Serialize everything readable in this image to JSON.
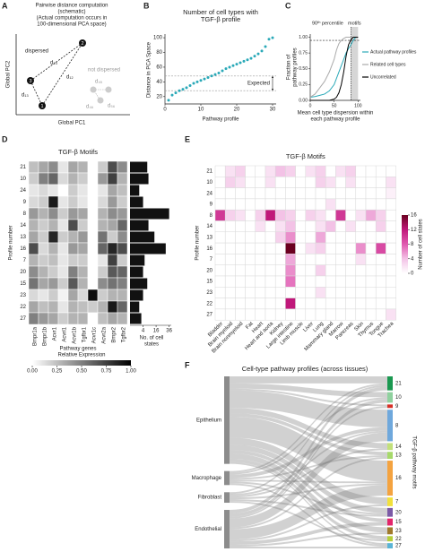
{
  "panel_labels": [
    "A",
    "B",
    "C",
    "D",
    "E",
    "F"
  ],
  "schematic": {
    "title_lines": [
      "Pairwise distance computation",
      "(schematic)",
      "(Actual computation occurs in",
      "100-dimensional PCA space)"
    ],
    "x_label": "Global PC1",
    "y_label": "Global PC2",
    "groups": [
      "dispersed",
      "not dispersed"
    ],
    "nodes": [
      "1",
      "2",
      "3"
    ],
    "edges": [
      "d₁₂",
      "d₁₃",
      "d₂₃",
      "d₄₅",
      "d₄₆",
      "d₅₆"
    ]
  },
  "chart_data": [
    {
      "type": "scatter",
      "title_lines": [
        "Number of cell types with",
        "TGF-β profile"
      ],
      "x_label": "Pathway profile",
      "y_label": "Distance in PCA Space",
      "color": "#2aa9b8",
      "x": [
        1,
        2,
        3,
        4,
        5,
        6,
        7,
        8,
        9,
        10,
        11,
        12,
        13,
        14,
        15,
        16,
        17,
        18,
        19,
        20,
        21,
        22,
        23,
        24,
        25,
        26,
        27,
        28,
        29,
        30
      ],
      "values": [
        15,
        22,
        25,
        28,
        30,
        32,
        35,
        38,
        40,
        42,
        44,
        46,
        48,
        50,
        52,
        55,
        58,
        60,
        62,
        64,
        66,
        68,
        70,
        72,
        75,
        78,
        82,
        88,
        98,
        100
      ],
      "xlim": [
        0,
        31
      ],
      "ylim": [
        10,
        105
      ],
      "xticks": [
        0,
        10,
        20,
        30
      ],
      "yticks": [
        20,
        40,
        60,
        80,
        100
      ],
      "expected_range": [
        28,
        48
      ],
      "expected_label": "Expected"
    },
    {
      "type": "line",
      "x_label_lines": [
        "Mean cell type dispersion within",
        "each pathway profile"
      ],
      "y_label_lines": [
        "Fraction of",
        "pathway profiles"
      ],
      "x": [
        0,
        10,
        20,
        30,
        40,
        50,
        55,
        60,
        65,
        70,
        75,
        80,
        85,
        90,
        95,
        100
      ],
      "series": [
        {
          "name": "Actual pathway profiles",
          "color": "#2aa9b8",
          "values": [
            0.05,
            0.06,
            0.08,
            0.1,
            0.15,
            0.25,
            0.35,
            0.45,
            0.55,
            0.65,
            0.75,
            0.82,
            0.88,
            0.95,
            1,
            1
          ]
        },
        {
          "name": "Related cell types",
          "color": "#aaaaaa",
          "values": [
            0.05,
            0.1,
            0.2,
            0.3,
            0.45,
            0.65,
            0.8,
            0.9,
            0.95,
            0.98,
            1,
            1,
            1,
            1,
            1,
            1
          ]
        },
        {
          "name": "Uncorrelated",
          "color": "#000000",
          "values": [
            0,
            0,
            0,
            0,
            0,
            0.02,
            0.05,
            0.12,
            0.25,
            0.45,
            0.7,
            0.88,
            0.96,
            1,
            1,
            1
          ]
        }
      ],
      "xlim": [
        0,
        105
      ],
      "ylim": [
        0,
        1.05
      ],
      "xticks": [
        0,
        50,
        100
      ],
      "yticks": [
        {
          "value": 0,
          "label": "0.00"
        },
        0.25,
        {
          "value": 0.5,
          "label": "0.50"
        },
        0.75,
        {
          "value": 1,
          "label": "1.00"
        }
      ],
      "motif_region": [
        85,
        100
      ],
      "motif_label": "motifs",
      "percentile_x": 85,
      "percentile_y": 0.95,
      "percentile_label": "90ᵗʰ percentile"
    },
    {
      "type": "heatmap",
      "title": "TGF-β Motifs",
      "y_label": "Profile number",
      "x_label": "Pathway genes",
      "colormap": "Greys",
      "clim": [
        0,
        1
      ],
      "rows": [
        "21",
        "10",
        "24",
        "9",
        "8",
        "14",
        "13",
        "16",
        "7",
        "20",
        "15",
        "23",
        "22",
        "27"
      ],
      "columns": [
        "Bmpr1a",
        "Bmpr1b",
        "Acvr1",
        "Acvrl1",
        "Acvr1b",
        "Tgfbr1",
        "Acvr1c",
        "Acvr2a",
        "Bmpr2",
        "Tgfbr2"
      ],
      "matrix": [
        [
          0.25,
          0.35,
          0.45,
          0.1,
          0.35,
          0.3,
          0,
          0.2,
          0.7,
          0.45
        ],
        [
          0.2,
          0.5,
          0.6,
          0.15,
          0.3,
          0.2,
          0,
          0.4,
          0.75,
          0.3
        ],
        [
          0.1,
          0.15,
          0.1,
          0,
          0.2,
          0.1,
          0,
          0.1,
          0.35,
          0.25
        ],
        [
          0.15,
          0.2,
          0.9,
          0.1,
          0.2,
          0.1,
          0,
          0.15,
          0.4,
          0.2
        ],
        [
          0.4,
          0.3,
          0.45,
          0.2,
          0.4,
          0.35,
          0,
          0.3,
          0.45,
          0.4
        ],
        [
          0.3,
          0.2,
          0.3,
          0.1,
          0.7,
          0.2,
          0,
          0.3,
          0.35,
          0.6
        ],
        [
          0.35,
          0.2,
          0.85,
          0.2,
          0.3,
          0.4,
          0,
          0.55,
          0.2,
          0.45
        ],
        [
          0.7,
          0.15,
          0.3,
          0.1,
          0.4,
          0.35,
          0,
          0.6,
          0.85,
          0.7
        ],
        [
          0.3,
          0.2,
          0.25,
          0.1,
          0.2,
          0.2,
          0,
          0.1,
          0.75,
          0.2
        ],
        [
          0.45,
          0.3,
          0.2,
          0.1,
          0.5,
          0.3,
          0,
          0.2,
          0.65,
          0.6
        ],
        [
          0.55,
          0.35,
          0.4,
          0.2,
          0.65,
          0.3,
          0,
          0.45,
          0.55,
          0.5
        ],
        [
          0.15,
          0.1,
          0.2,
          0.05,
          0.35,
          0.15,
          0.95,
          0.2,
          0.3,
          0.3
        ],
        [
          0.35,
          0.25,
          0.3,
          0.1,
          0.3,
          0.25,
          0.2,
          0.3,
          0.9,
          0.6
        ],
        [
          0.5,
          0.4,
          0.35,
          0.2,
          0.3,
          0.3,
          0,
          0.25,
          0.35,
          0.3
        ]
      ],
      "bar_values": [
        7,
        8,
        2,
        4,
        36,
        8,
        14,
        30,
        5,
        4,
        7,
        4,
        2,
        3
      ],
      "bar_color": "#111111",
      "bar_lim": [
        0,
        40
      ],
      "bar_ticks": [
        4,
        16,
        36
      ],
      "bar_scale": "sqrt",
      "bar_label_lines": [
        "No. of cell",
        "states"
      ],
      "colorbar_label": "Relative Expression",
      "colorbar_ticks": [
        {
          "value": 0,
          "label": "0.00"
        },
        0.25,
        {
          "value": 0.5,
          "label": "0.50"
        },
        0.75,
        {
          "value": 1,
          "label": "1.00"
        }
      ]
    },
    {
      "type": "heatmap",
      "title": "TGF-β Motifs",
      "y_label": "Profile number",
      "colormap": "RdPu",
      "clim": [
        0,
        16
      ],
      "rows": [
        "21",
        "10",
        "24",
        "9",
        "8",
        "14",
        "13",
        "16",
        "7",
        "20",
        "15",
        "23",
        "22",
        "27"
      ],
      "columns": [
        "Bladder",
        "Brain myeloid",
        "Brain nonmyeloid",
        "Fat",
        "Heart",
        "Heart and aorta",
        "Kidney",
        "Large intestine",
        "Limb muscle",
        "Liver",
        "Lung",
        "Mammary gland",
        "Marrow",
        "Pancreas",
        "Skin",
        "Thymus",
        "Tongue",
        "Trachea"
      ],
      "matrix": [
        [
          0,
          2,
          3,
          0,
          0,
          2,
          4,
          3,
          0,
          2,
          3,
          0,
          2,
          3,
          0,
          0,
          0,
          0
        ],
        [
          0,
          3,
          2,
          0,
          0,
          2,
          0,
          0,
          0,
          0,
          3,
          2,
          0,
          2,
          0,
          0,
          0,
          2
        ],
        [
          0,
          0,
          0,
          0,
          0,
          0,
          0,
          0,
          0,
          0,
          0,
          0,
          0,
          0,
          0,
          0,
          0,
          1
        ],
        [
          0,
          0,
          0,
          0,
          0,
          0,
          0,
          0,
          0,
          0,
          0,
          2,
          0,
          0,
          0,
          0,
          0,
          0
        ],
        [
          10,
          3,
          2,
          0,
          3,
          12,
          4,
          3,
          0,
          3,
          2,
          0,
          10,
          0,
          2,
          5,
          3,
          0
        ],
        [
          0,
          0,
          0,
          0,
          2,
          0,
          2,
          4,
          0,
          0,
          2,
          4,
          0,
          2,
          0,
          0,
          3,
          0
        ],
        [
          0,
          0,
          0,
          0,
          0,
          0,
          3,
          6,
          0,
          0,
          5,
          0,
          0,
          0,
          0,
          0,
          0,
          0
        ],
        [
          0,
          0,
          0,
          0,
          0,
          0,
          0,
          16,
          0,
          2,
          3,
          0,
          0,
          0,
          6,
          0,
          9,
          0
        ],
        [
          0,
          0,
          0,
          0,
          0,
          0,
          0,
          5,
          0,
          0,
          0,
          0,
          0,
          0,
          2,
          0,
          0,
          0
        ],
        [
          0,
          0,
          0,
          0,
          0,
          0,
          0,
          6,
          0,
          0,
          3,
          0,
          0,
          0,
          0,
          0,
          0,
          0
        ],
        [
          0,
          0,
          0,
          0,
          0,
          0,
          0,
          7,
          0,
          0,
          0,
          0,
          0,
          0,
          0,
          0,
          0,
          0
        ],
        [
          0,
          0,
          0,
          0,
          0,
          0,
          0,
          0,
          0,
          0,
          2,
          0,
          0,
          0,
          0,
          0,
          0,
          0
        ],
        [
          0,
          0,
          0,
          0,
          0,
          0,
          0,
          12,
          0,
          0,
          0,
          0,
          0,
          0,
          0,
          0,
          0,
          0
        ],
        [
          0,
          0,
          0,
          0,
          0,
          0,
          0,
          0,
          0,
          0,
          0,
          0,
          0,
          0,
          0,
          0,
          0,
          2
        ]
      ],
      "colorbar_label": "Number of cell states",
      "colorbar_ticks": [
        0,
        4,
        8,
        12,
        16
      ]
    },
    {
      "type": "sankey",
      "title": "Cell-type pathway profiles (across tissues)",
      "side_label": "TGF-β pathway motifs",
      "sources": [
        "Epithelium",
        "Macrophage",
        "Fibroblast",
        "Endothelial"
      ],
      "source_color": "#8c8c8c",
      "targets": [
        "21",
        "10",
        "9",
        "8",
        "14",
        "13",
        "16",
        "7",
        "20",
        "15",
        "23",
        "22",
        "27"
      ],
      "target_colors": [
        "#1a9850",
        "#8fd19e",
        "#d73027",
        "#6fa8dc",
        "#c2e07a",
        "#a6d96a",
        "#f4a340",
        "#f2e03a",
        "#7b5aa6",
        "#e3256b",
        "#a07a2c",
        "#b5cf3a",
        "#5ab4d6"
      ],
      "flows": [
        [
          4,
          3,
          1,
          10,
          3,
          2,
          12,
          4,
          3,
          2,
          3,
          2,
          1
        ],
        [
          1,
          1,
          0,
          2,
          0,
          1,
          1,
          0,
          1,
          0,
          0,
          0,
          1
        ],
        [
          1,
          0,
          0,
          1,
          1,
          0,
          1,
          0,
          1,
          0,
          0,
          1,
          0
        ],
        [
          2,
          2,
          1,
          5,
          0,
          1,
          6,
          1,
          0,
          2,
          1,
          0,
          1
        ]
      ],
      "flow_color": "#7a7a7a"
    }
  ]
}
